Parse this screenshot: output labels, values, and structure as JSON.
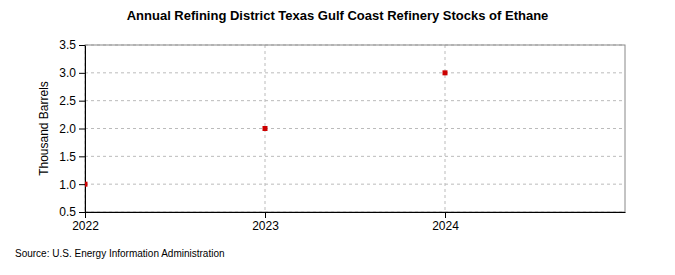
{
  "chart_data": {
    "type": "scatter",
    "title": "Annual Refining District Texas Gulf Coast Refinery Stocks of Ethane",
    "y_label": "Thousand Barrels",
    "source": "Source: U.S. Energy Information Administration",
    "x": [
      2022,
      2023,
      2024
    ],
    "values": [
      1,
      2,
      3
    ],
    "color": "#cc0000",
    "marker": "square",
    "xlim": [
      2022,
      2025
    ],
    "xticks": [
      2022,
      2023,
      2024
    ],
    "ylim": [
      0.5,
      3.5
    ],
    "yticks": [
      0.5,
      {
        "value": 1,
        "label": "1.0"
      },
      1.5,
      {
        "value": 2,
        "label": "2.0"
      },
      2.5,
      {
        "value": 3,
        "label": "3.0"
      },
      3.5
    ],
    "grid": true
  }
}
